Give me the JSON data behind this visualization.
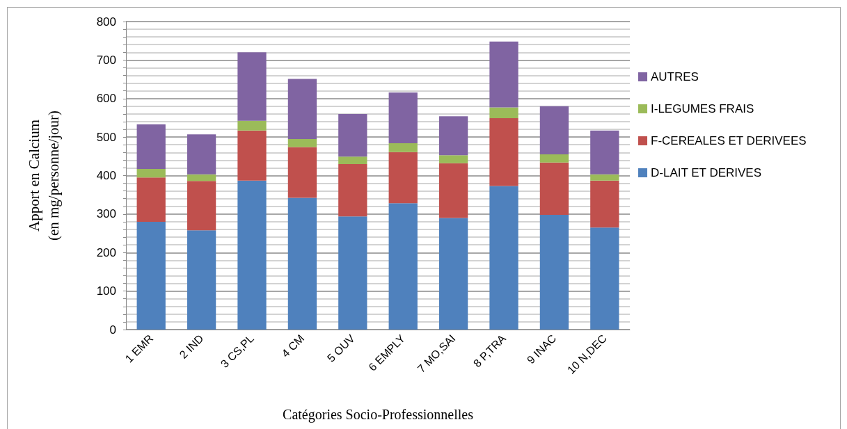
{
  "chart_data": {
    "type": "bar",
    "stacked": true,
    "xlabel": "Catégories Socio-Professionnelles",
    "ylabel": "Apport en Calcium\n(en mg/personne/jour)",
    "categories": [
      "1 EMR",
      "2 IND",
      "3 CS,PL",
      "4 CM",
      "5 OUV",
      "6 EMPLY",
      "7 MO,SAI",
      "8 P,TRA",
      "9 INAC",
      "10 N,DEC"
    ],
    "series": [
      {
        "name": "D-LAIT ET DERIVES",
        "color": "#4f81bd",
        "values": [
          280,
          258,
          387,
          342,
          294,
          328,
          290,
          373,
          298,
          265
        ]
      },
      {
        "name": "F-CEREALES ET DERIVEES",
        "color": "#c0504d",
        "values": [
          115,
          128,
          130,
          132,
          136,
          133,
          142,
          176,
          136,
          122
        ]
      },
      {
        "name": "I-LEGUMES FRAIS",
        "color": "#9bbb59",
        "values": [
          22,
          17,
          25,
          21,
          19,
          23,
          21,
          28,
          21,
          16
        ]
      },
      {
        "name": "AUTRES",
        "color": "#8064a2",
        "values": [
          116,
          104,
          178,
          156,
          111,
          132,
          101,
          171,
          125,
          114
        ]
      }
    ],
    "ylim": [
      0,
      800
    ],
    "yticks": [
      0,
      {
        "value": 20,
        "label": null
      },
      {
        "value": 40,
        "label": null
      },
      {
        "value": 60,
        "label": null
      },
      {
        "value": 80,
        "label": null
      },
      100,
      {
        "value": 120,
        "label": null
      },
      {
        "value": 140,
        "label": null
      },
      {
        "value": 160,
        "label": null
      },
      {
        "value": 180,
        "label": null
      },
      200,
      {
        "value": 220,
        "label": null
      },
      {
        "value": 240,
        "label": null
      },
      {
        "value": 260,
        "label": null
      },
      {
        "value": 280,
        "label": null
      },
      300,
      {
        "value": 320,
        "label": null
      },
      {
        "value": 340,
        "label": null
      },
      {
        "value": 360,
        "label": null
      },
      {
        "value": 380,
        "label": null
      },
      400,
      {
        "value": 420,
        "label": null
      },
      {
        "value": 440,
        "label": null
      },
      {
        "value": 460,
        "label": null
      },
      {
        "value": 480,
        "label": null
      },
      500,
      {
        "value": 520,
        "label": null
      },
      {
        "value": 540,
        "label": null
      },
      {
        "value": 560,
        "label": null
      },
      {
        "value": 580,
        "label": null
      },
      600,
      {
        "value": 620,
        "label": null
      },
      {
        "value": 640,
        "label": null
      },
      {
        "value": 660,
        "label": null
      },
      {
        "value": 680,
        "label": null
      },
      700,
      {
        "value": 720,
        "label": null
      },
      {
        "value": 740,
        "label": null
      },
      {
        "value": 760,
        "label": null
      },
      {
        "value": 780,
        "label": null
      },
      800
    ],
    "grid": "y",
    "legend": "right"
  }
}
